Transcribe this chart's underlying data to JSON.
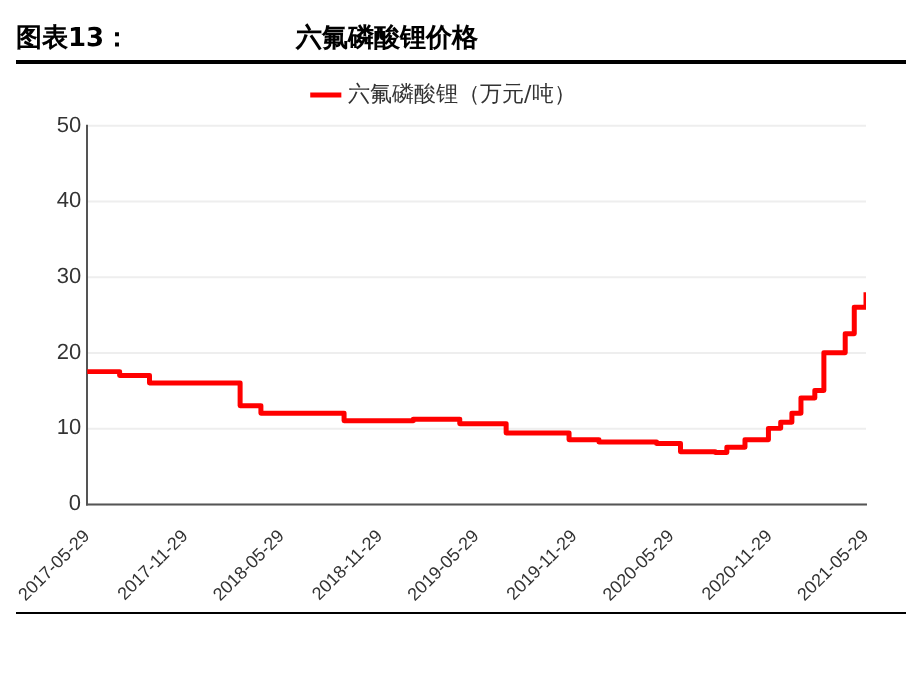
{
  "chart_data": {
    "type": "step",
    "title": "图表13：",
    "subtitle": "六氟磷酸锂价格",
    "legend": "top",
    "grid": "y",
    "marker": "none",
    "line_style": "solid",
    "xlim": [
      "2017-05-29",
      "2021-05-29"
    ],
    "xticks": [
      "2017-05-29",
      "2017-11-29",
      "2018-05-29",
      "2018-11-29",
      "2019-05-29",
      "2019-11-29",
      "2020-05-29",
      "2020-11-29",
      "2021-05-29"
    ],
    "ylim": [
      0,
      50
    ],
    "yticks": [
      0,
      10,
      20,
      30,
      40,
      50
    ],
    "series": [
      {
        "name": "六氟磷酸锂（万元/吨）",
        "color": "#ff0000",
        "x": [
          "2017-05-29",
          "2017-07-29",
          "2017-09-23",
          "2018-03-12",
          "2018-04-20",
          "2018-09-23",
          "2019-01-31",
          "2019-04-28",
          "2019-07-24",
          "2019-11-19",
          "2020-01-14",
          "2020-05-01",
          "2020-06-15",
          "2020-08-19",
          "2020-09-10",
          "2020-10-14",
          "2020-11-27",
          "2020-12-20",
          "2021-01-10",
          "2021-01-27",
          "2021-02-22",
          "2021-03-11",
          "2021-04-15",
          "2021-04-20",
          "2021-05-07",
          "2021-05-20",
          "2021-05-29"
        ],
        "values": [
          17.5,
          17,
          16,
          13,
          12,
          11,
          11.2,
          10.6,
          9.4,
          8.5,
          8.2,
          8,
          6.9,
          6.8,
          7.5,
          8.5,
          10,
          10.8,
          12,
          14,
          15,
          20,
          20,
          22.5,
          26,
          26,
          28
        ]
      }
    ]
  }
}
